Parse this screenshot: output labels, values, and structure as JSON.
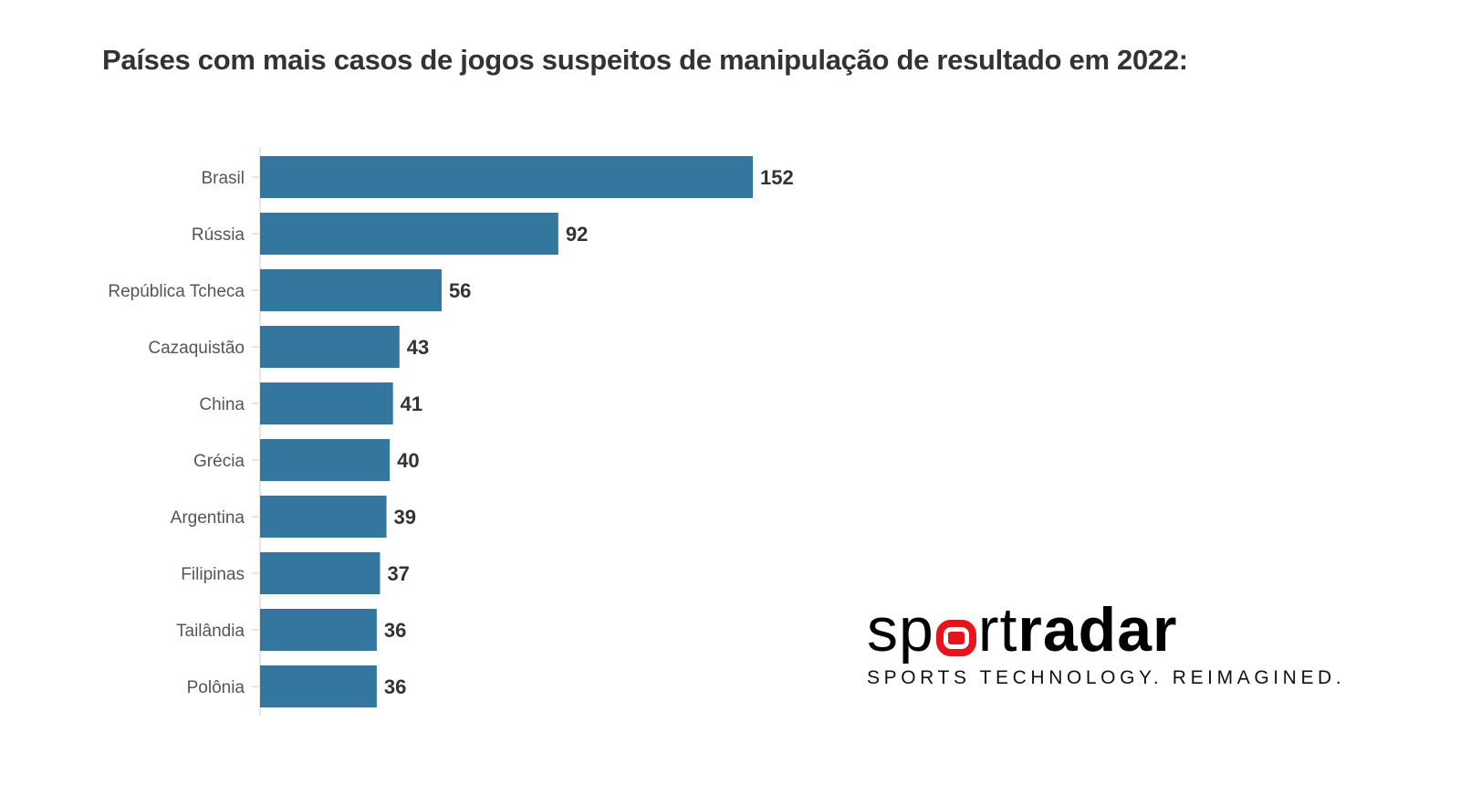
{
  "chart_data": {
    "type": "bar",
    "orientation": "horizontal",
    "title": "Países com mais casos de jogos suspeitos de manipulação de resultado em 2022:",
    "categories": [
      "Brasil",
      "Rússia",
      "República Tcheca",
      "Cazaquistão",
      "China",
      "Grécia",
      "Argentina",
      "Filipinas",
      "Tailândia",
      "Polônia"
    ],
    "values": [
      152,
      92,
      56,
      43,
      41,
      40,
      39,
      37,
      36,
      36
    ],
    "xlabel": "",
    "ylabel": "",
    "xlim": [
      0,
      152
    ],
    "grid": false,
    "data_labels": true,
    "bar_color": "#33779f"
  },
  "logo": {
    "word_thin_1": "sp",
    "word_thin_2": "rt",
    "word_bold": "radar",
    "tagline": "SPORTS TECHNOLOGY. REIMAGINED.",
    "accent": "#e8141b"
  }
}
